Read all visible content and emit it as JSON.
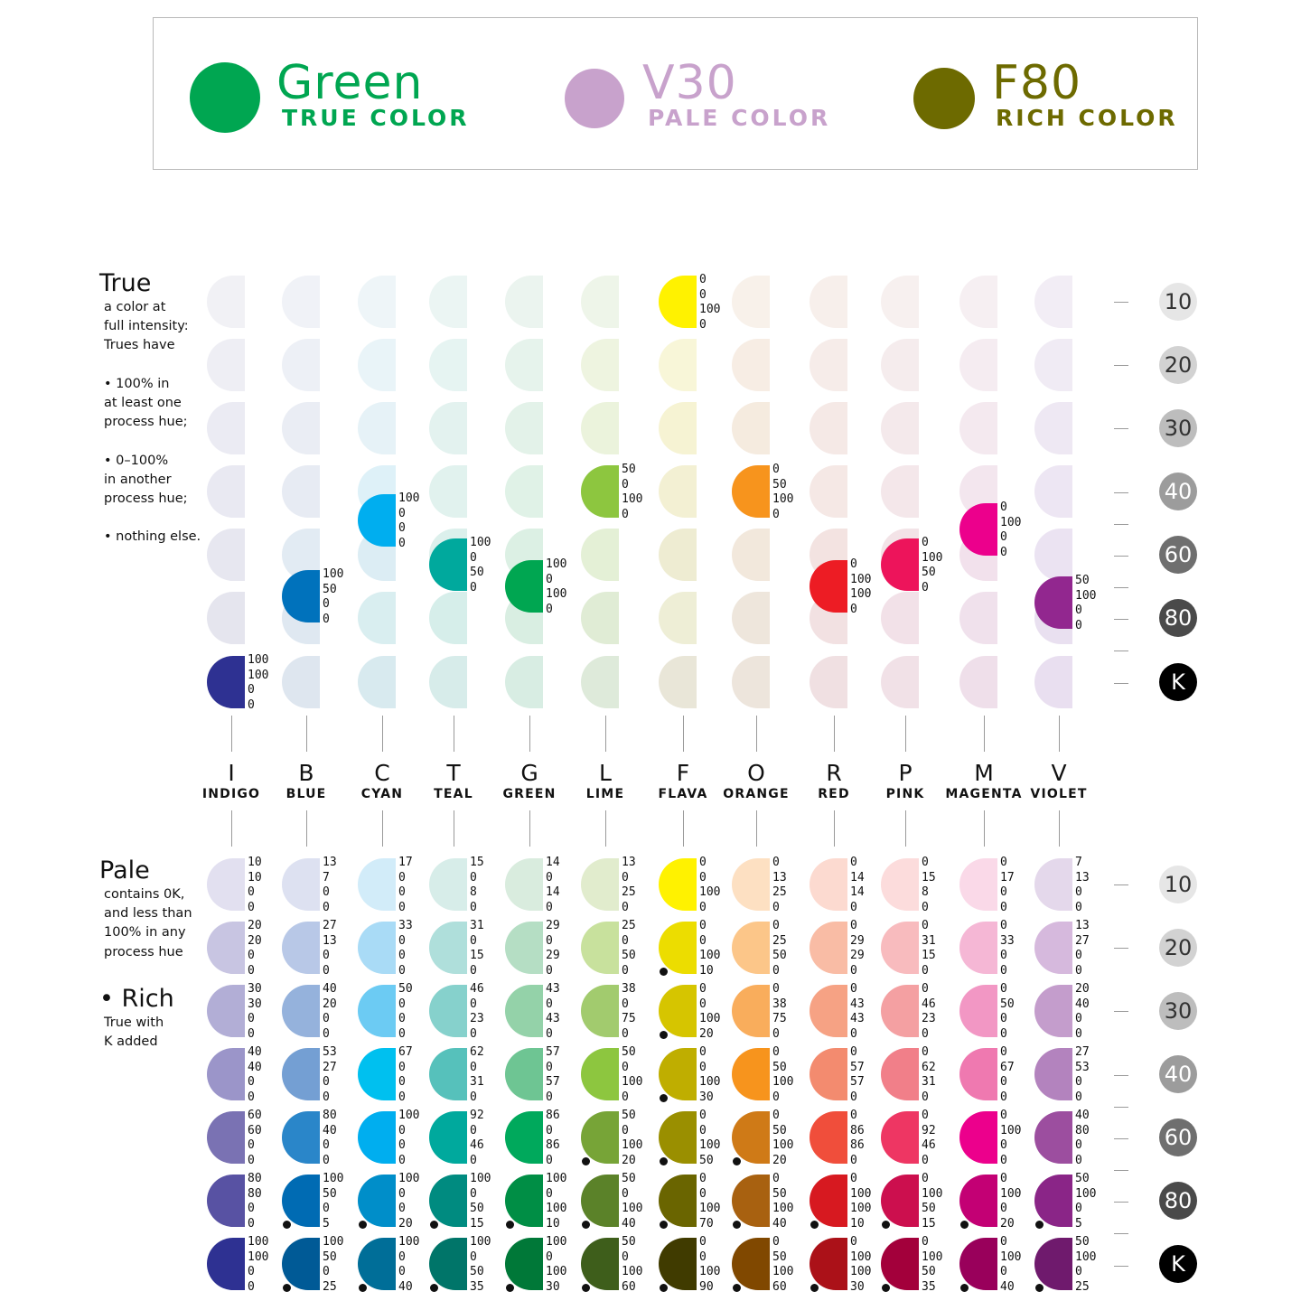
{
  "legend": [
    {
      "title": "Green",
      "subtitle": "TRUE COLOR",
      "color": "#00a651",
      "text_color": "#00a651"
    },
    {
      "title": "V30",
      "subtitle": "PALE COLOR",
      "color": "#c8a2cc",
      "text_color": "#c8a2cc"
    },
    {
      "title": "F80",
      "subtitle": "RICH COLOR",
      "color": "#6d6a00",
      "text_color": "#6d6a00"
    }
  ],
  "true_section": {
    "heading": "True",
    "lines": [
      "a color at",
      "full intensity:",
      "Trues have",
      "",
      "• 100% in",
      "at least one",
      "process hue;",
      "",
      "• 0–100%",
      "in another",
      "process hue;",
      "",
      "• nothing else."
    ]
  },
  "pale_section": {
    "heading": "Pale",
    "lines": [
      "contains 0K,",
      "and less than",
      "100% in any",
      "process hue"
    ]
  },
  "rich_section": {
    "heading": "• Rich",
    "lines": [
      "True with",
      "K added"
    ]
  },
  "columns": [
    {
      "letter": "I",
      "name": "INDIGO"
    },
    {
      "letter": "B",
      "name": "BLUE"
    },
    {
      "letter": "C",
      "name": "CYAN"
    },
    {
      "letter": "T",
      "name": "TEAL"
    },
    {
      "letter": "G",
      "name": "GREEN"
    },
    {
      "letter": "L",
      "name": "LIME"
    },
    {
      "letter": "F",
      "name": "FLAVA"
    },
    {
      "letter": "O",
      "name": "ORANGE"
    },
    {
      "letter": "R",
      "name": "RED"
    },
    {
      "letter": "P",
      "name": "PINK"
    },
    {
      "letter": "M",
      "name": "MAGENTA"
    },
    {
      "letter": "V",
      "name": "VIOLET"
    }
  ],
  "levels": [
    {
      "label": "10",
      "bg": "#e6e6e6",
      "fg": "#333333"
    },
    {
      "label": "20",
      "bg": "#d2d2d2",
      "fg": "#333333"
    },
    {
      "label": "30",
      "bg": "#bdbdbd",
      "fg": "#333333"
    },
    {
      "label": "40",
      "bg": "#9c9c9c",
      "fg": "#ffffff"
    },
    {
      "label": "60",
      "bg": "#6f6f6f",
      "fg": "#ffffff"
    },
    {
      "label": "80",
      "bg": "#4a4a4a",
      "fg": "#ffffff"
    },
    {
      "label": "K",
      "bg": "#000000",
      "fg": "#ffffff"
    }
  ],
  "true_grid": {
    "faded": [
      [
        "#f1f1f5",
        "#f0f2f7",
        "#eef5f8",
        "#ebf5f3",
        "#ebf4ef",
        "#eef5e9",
        "#fafadc",
        "#f8f1ea",
        "#f7efeb",
        "#f7f0ef",
        "#f6eff2",
        "#f2edf5"
      ],
      [
        "#eeeef4",
        "#edf0f6",
        "#e9f4f8",
        "#e6f4f2",
        "#e6f3ec",
        "#eef4e0",
        "#f8f6d8",
        "#f7ede4",
        "#f6ece9",
        "#f5eced",
        "#f5ecf1",
        "#f0ebf4"
      ],
      [
        "#ebebf3",
        "#eaedf4",
        "#e6f2f7",
        "#e3f2ef",
        "#e3f2e9",
        "#ebf3dc",
        "#f6f3d3",
        "#f5ebdf",
        "#f5e9e6",
        "#f4e9eb",
        "#f4e9ef",
        "#eee8f3"
      ],
      [
        "#e9e9f2",
        "#e7ebf3",
        "#def1f8",
        "#e1f2ee",
        "#e0f2e7",
        "#e6f2d8",
        "#f3f0d3",
        "#f3e6d9",
        "#f5e8e5",
        "#f4e7ea",
        "#f3e6ee",
        "#ede6f3"
      ],
      [
        "#e7e7f0",
        "#e2ebf3",
        "#dcedf4",
        "#dcf0ec",
        "#dcf0e4",
        "#e4f0d6",
        "#eeecd2",
        "#f2e8dc",
        "#f3e3e1",
        "#f3e3e7",
        "#f2e1ec",
        "#ebe3f2"
      ],
      [
        "#e5e5ee",
        "#dfe8f1",
        "#d9eef0",
        "#d6eeea",
        "#d9eee2",
        "#e0ecd5",
        "#eeeed6",
        "#eee6dc",
        "#f2e1e2",
        "#f2e1e8",
        "#f0e1ec",
        "#e9e0f0"
      ],
      [
        "#e3e3ec",
        "#dee6ef",
        "#d8eaef",
        "#d7ecea",
        "#d8ede3",
        "#deeada",
        "#e9e6d8",
        "#ede5dc",
        "#f0e0e2",
        "#f1e1e7",
        "#efdfea",
        "#e9dff0"
      ]
    ],
    "highlights": [
      {
        "col": 6,
        "row": 0,
        "color": "#fff200",
        "cmyk": [
          "0",
          "0",
          "100",
          "0"
        ]
      },
      {
        "col": 5,
        "row": 3,
        "color": "#8dc63f",
        "cmyk": [
          "50",
          "0",
          "100",
          "0"
        ]
      },
      {
        "col": 7,
        "row": 3,
        "color": "#f7941d",
        "cmyk": [
          "0",
          "50",
          "100",
          "0"
        ]
      },
      {
        "col": 2,
        "row": 4,
        "color": "#00aeef",
        "cmyk": [
          "100",
          "0",
          "0",
          "0"
        ],
        "offset": -0.55
      },
      {
        "col": 3,
        "row": 4,
        "color": "#00a99d",
        "cmyk": [
          "100",
          "0",
          "50",
          "0"
        ],
        "offset": 0.15
      },
      {
        "col": 4,
        "row": 4,
        "color": "#00a651",
        "cmyk": [
          "100",
          "0",
          "100",
          "0"
        ],
        "offset": 0.5
      },
      {
        "col": 8,
        "row": 4,
        "color": "#ed1c24",
        "cmyk": [
          "0",
          "100",
          "100",
          "0"
        ],
        "offset": 0.5
      },
      {
        "col": 9,
        "row": 4,
        "color": "#ed145b",
        "cmyk": [
          "0",
          "100",
          "50",
          "0"
        ],
        "offset": 0.15
      },
      {
        "col": 10,
        "row": 4,
        "color": "#ec008c",
        "cmyk": [
          "0",
          "100",
          "0",
          "0"
        ],
        "offset": -0.4
      },
      {
        "col": 1,
        "row": 5,
        "color": "#0072bc",
        "cmyk": [
          "100",
          "50",
          "0",
          "0"
        ],
        "offset": -0.35
      },
      {
        "col": 11,
        "row": 5,
        "color": "#92278f",
        "cmyk": [
          "50",
          "100",
          "0",
          "0"
        ],
        "offset": -0.25
      },
      {
        "col": 0,
        "row": 6,
        "color": "#2e3192",
        "cmyk": [
          "100",
          "100",
          "0",
          "0"
        ]
      }
    ]
  },
  "pale_grid": [
    [
      {
        "color": "#e2e0f0",
        "cmyk": [
          "10",
          "10",
          "0",
          "0"
        ]
      },
      {
        "color": "#dde1f1",
        "cmyk": [
          "13",
          "7",
          "0",
          "0"
        ]
      },
      {
        "color": "#d2ecf9",
        "cmyk": [
          "17",
          "0",
          "0",
          "0"
        ]
      },
      {
        "color": "#d7ede9",
        "cmyk": [
          "15",
          "0",
          "8",
          "0"
        ]
      },
      {
        "color": "#d9ecde",
        "cmyk": [
          "14",
          "0",
          "14",
          "0"
        ]
      },
      {
        "color": "#e1eccd",
        "cmyk": [
          "13",
          "0",
          "25",
          "0"
        ]
      },
      {
        "color": "#fff200",
        "cmyk": [
          "0",
          "0",
          "100",
          "0"
        ]
      },
      {
        "color": "#fde0c2",
        "cmyk": [
          "0",
          "13",
          "25",
          "0"
        ]
      },
      {
        "color": "#fcdad0",
        "cmyk": [
          "0",
          "14",
          "14",
          "0"
        ]
      },
      {
        "color": "#fcdcdc",
        "cmyk": [
          "0",
          "15",
          "8",
          "0"
        ]
      },
      {
        "color": "#fad9e8",
        "cmyk": [
          "0",
          "17",
          "0",
          "0"
        ]
      },
      {
        "color": "#e4d8eb",
        "cmyk": [
          "7",
          "13",
          "0",
          "0"
        ]
      }
    ],
    [
      {
        "color": "#c8c5e2",
        "cmyk": [
          "20",
          "20",
          "0",
          "0"
        ]
      },
      {
        "color": "#b8c8e7",
        "cmyk": [
          "27",
          "13",
          "0",
          "0"
        ]
      },
      {
        "color": "#a9dbf6",
        "cmyk": [
          "33",
          "0",
          "0",
          "0"
        ]
      },
      {
        "color": "#afdfdb",
        "cmyk": [
          "31",
          "0",
          "15",
          "0"
        ]
      },
      {
        "color": "#b5dec4",
        "cmyk": [
          "29",
          "0",
          "29",
          "0"
        ]
      },
      {
        "color": "#c8e19d",
        "cmyk": [
          "25",
          "0",
          "50",
          "0"
        ]
      },
      {
        "color": "#ecdd00",
        "cmyk": [
          "0",
          "0",
          "100",
          "10"
        ],
        "k": true
      },
      {
        "color": "#fcc689",
        "cmyk": [
          "0",
          "25",
          "50",
          "0"
        ]
      },
      {
        "color": "#f9bca5",
        "cmyk": [
          "0",
          "29",
          "29",
          "0"
        ]
      },
      {
        "color": "#f8bbbe",
        "cmyk": [
          "0",
          "31",
          "15",
          "0"
        ]
      },
      {
        "color": "#f5b7d5",
        "cmyk": [
          "0",
          "33",
          "0",
          "0"
        ]
      },
      {
        "color": "#d6b9dd",
        "cmyk": [
          "13",
          "27",
          "0",
          "0"
        ]
      }
    ],
    [
      {
        "color": "#b2aed6",
        "cmyk": [
          "30",
          "30",
          "0",
          "0"
        ]
      },
      {
        "color": "#95b2dc",
        "cmyk": [
          "40",
          "20",
          "0",
          "0"
        ]
      },
      {
        "color": "#6ccbf3",
        "cmyk": [
          "50",
          "0",
          "0",
          "0"
        ]
      },
      {
        "color": "#86d1cc",
        "cmyk": [
          "46",
          "0",
          "23",
          "0"
        ]
      },
      {
        "color": "#94d2a9",
        "cmyk": [
          "43",
          "0",
          "43",
          "0"
        ]
      },
      {
        "color": "#a2cb6e",
        "cmyk": [
          "38",
          "0",
          "75",
          "0"
        ]
      },
      {
        "color": "#d6c500",
        "cmyk": [
          "0",
          "0",
          "100",
          "20"
        ],
        "k": true
      },
      {
        "color": "#f9ad5c",
        "cmyk": [
          "0",
          "38",
          "75",
          "0"
        ]
      },
      {
        "color": "#f6a284",
        "cmyk": [
          "0",
          "43",
          "43",
          "0"
        ]
      },
      {
        "color": "#f4a0a2",
        "cmyk": [
          "0",
          "46",
          "23",
          "0"
        ]
      },
      {
        "color": "#f297c4",
        "cmyk": [
          "0",
          "50",
          "0",
          "0"
        ]
      },
      {
        "color": "#c49dcc",
        "cmyk": [
          "20",
          "40",
          "0",
          "0"
        ]
      }
    ],
    [
      {
        "color": "#9b95c9",
        "cmyk": [
          "40",
          "40",
          "0",
          "0"
        ]
      },
      {
        "color": "#749fd3",
        "cmyk": [
          "53",
          "27",
          "0",
          "0"
        ]
      },
      {
        "color": "#00c0ef",
        "cmyk": [
          "67",
          "0",
          "0",
          "0"
        ]
      },
      {
        "color": "#56c1bb",
        "cmyk": [
          "62",
          "0",
          "31",
          "0"
        ]
      },
      {
        "color": "#6ec593",
        "cmyk": [
          "57",
          "0",
          "57",
          "0"
        ]
      },
      {
        "color": "#8dc63f",
        "cmyk": [
          "50",
          "0",
          "100",
          "0"
        ]
      },
      {
        "color": "#bfae00",
        "cmyk": [
          "0",
          "0",
          "100",
          "30"
        ],
        "k": true
      },
      {
        "color": "#f7941d",
        "cmyk": [
          "0",
          "50",
          "100",
          "0"
        ]
      },
      {
        "color": "#f38b6f",
        "cmyk": [
          "0",
          "57",
          "57",
          "0"
        ]
      },
      {
        "color": "#f17f89",
        "cmyk": [
          "0",
          "62",
          "31",
          "0"
        ]
      },
      {
        "color": "#ef79b0",
        "cmyk": [
          "0",
          "67",
          "0",
          "0"
        ]
      },
      {
        "color": "#b383be",
        "cmyk": [
          "27",
          "53",
          "0",
          "0"
        ]
      }
    ],
    [
      {
        "color": "#7a72b3",
        "cmyk": [
          "60",
          "60",
          "0",
          "0"
        ]
      },
      {
        "color": "#2a86c9",
        "cmyk": [
          "80",
          "40",
          "0",
          "0"
        ]
      },
      {
        "color": "#00aeef",
        "cmyk": [
          "100",
          "0",
          "0",
          "0"
        ]
      },
      {
        "color": "#00a99d",
        "cmyk": [
          "92",
          "0",
          "46",
          "0"
        ]
      },
      {
        "color": "#00a95c",
        "cmyk": [
          "86",
          "0",
          "86",
          "0"
        ]
      },
      {
        "color": "#77a437",
        "cmyk": [
          "50",
          "0",
          "100",
          "20"
        ],
        "k": true
      },
      {
        "color": "#9a8f00",
        "cmyk": [
          "0",
          "0",
          "100",
          "50"
        ],
        "k": true
      },
      {
        "color": "#cf7a17",
        "cmyk": [
          "0",
          "50",
          "100",
          "20"
        ],
        "k": true
      },
      {
        "color": "#f04e3b",
        "cmyk": [
          "0",
          "86",
          "86",
          "0"
        ]
      },
      {
        "color": "#ee3663",
        "cmyk": [
          "0",
          "92",
          "46",
          "0"
        ]
      },
      {
        "color": "#ec008c",
        "cmyk": [
          "0",
          "100",
          "0",
          "0"
        ]
      },
      {
        "color": "#9c4e9f",
        "cmyk": [
          "40",
          "80",
          "0",
          "0"
        ]
      }
    ],
    [
      {
        "color": "#5852a3",
        "cmyk": [
          "80",
          "80",
          "0",
          "0"
        ]
      },
      {
        "color": "#006bb3",
        "cmyk": [
          "100",
          "50",
          "0",
          "5"
        ],
        "k": true
      },
      {
        "color": "#008ec9",
        "cmyk": [
          "100",
          "0",
          "0",
          "20"
        ],
        "k": true
      },
      {
        "color": "#008b80",
        "cmyk": [
          "100",
          "0",
          "50",
          "15"
        ],
        "k": true
      },
      {
        "color": "#008e45",
        "cmyk": [
          "100",
          "0",
          "100",
          "10"
        ],
        "k": true
      },
      {
        "color": "#5b8229",
        "cmyk": [
          "50",
          "0",
          "100",
          "40"
        ],
        "k": true
      },
      {
        "color": "#6a6500",
        "cmyk": [
          "0",
          "0",
          "100",
          "70"
        ],
        "k": true
      },
      {
        "color": "#a86110",
        "cmyk": [
          "0",
          "50",
          "100",
          "40"
        ],
        "k": true
      },
      {
        "color": "#d71920",
        "cmyk": [
          "0",
          "100",
          "100",
          "10"
        ],
        "k": true
      },
      {
        "color": "#cc0f4e",
        "cmyk": [
          "0",
          "100",
          "50",
          "15"
        ],
        "k": true
      },
      {
        "color": "#c30074",
        "cmyk": [
          "0",
          "100",
          "0",
          "20"
        ],
        "k": true
      },
      {
        "color": "#8a2587",
        "cmyk": [
          "50",
          "100",
          "0",
          "5"
        ],
        "k": true
      }
    ],
    [
      {
        "color": "#2e3192",
        "cmyk": [
          "100",
          "100",
          "0",
          "0"
        ]
      },
      {
        "color": "#005a96",
        "cmyk": [
          "100",
          "50",
          "0",
          "25"
        ],
        "k": true
      },
      {
        "color": "#006e98",
        "cmyk": [
          "100",
          "0",
          "0",
          "40"
        ],
        "k": true
      },
      {
        "color": "#007569",
        "cmyk": [
          "100",
          "0",
          "50",
          "35"
        ],
        "k": true
      },
      {
        "color": "#007838",
        "cmyk": [
          "100",
          "0",
          "100",
          "30"
        ],
        "k": true
      },
      {
        "color": "#3e5e1b",
        "cmyk": [
          "50",
          "0",
          "100",
          "60"
        ],
        "k": true
      },
      {
        "color": "#403b00",
        "cmyk": [
          "0",
          "0",
          "100",
          "90"
        ],
        "k": true
      },
      {
        "color": "#804800",
        "cmyk": [
          "0",
          "50",
          "100",
          "60"
        ],
        "k": true
      },
      {
        "color": "#ab1118",
        "cmyk": [
          "0",
          "100",
          "100",
          "30"
        ],
        "k": true
      },
      {
        "color": "#a3003b",
        "cmyk": [
          "0",
          "100",
          "50",
          "35"
        ],
        "k": true
      },
      {
        "color": "#99005b",
        "cmyk": [
          "0",
          "100",
          "0",
          "40"
        ],
        "k": true
      },
      {
        "color": "#6f1a6d",
        "cmyk": [
          "50",
          "100",
          "0",
          "25"
        ],
        "k": true
      }
    ]
  ]
}
